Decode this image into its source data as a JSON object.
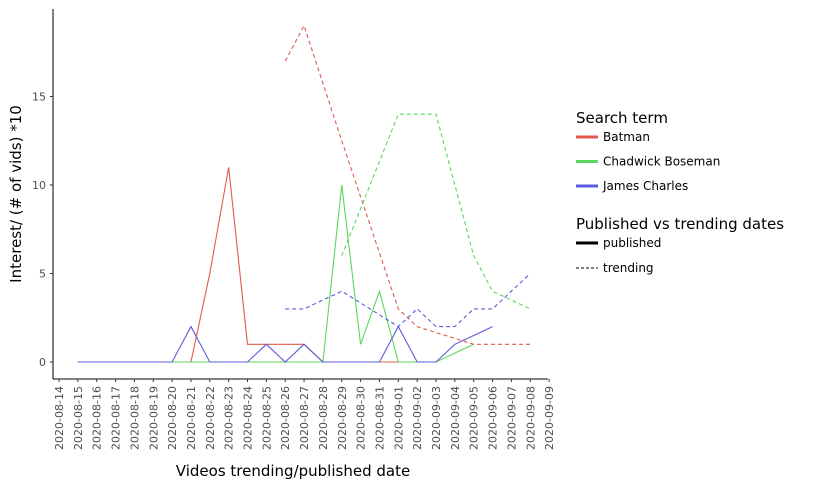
{
  "chart_data": {
    "type": "line",
    "xlabel": "Videos trending/published date",
    "ylabel": "Interest/ (# of vids) *10",
    "ylim": [
      -0.9,
      19.9
    ],
    "y_ticks": [
      0,
      5,
      10,
      15
    ],
    "y_tick_labels": [
      "0",
      "5",
      "10",
      "15"
    ],
    "grid": false,
    "legend_position": "right",
    "categories": [
      "2020-08-14",
      "2020-08-15",
      "2020-08-16",
      "2020-08-17",
      "2020-08-18",
      "2020-08-19",
      "2020-08-20",
      "2020-08-21",
      "2020-08-22",
      "2020-08-23",
      "2020-08-24",
      "2020-08-25",
      "2020-08-26",
      "2020-08-27",
      "2020-08-28",
      "2020-08-29",
      "2020-08-30",
      "2020-08-31",
      "2020-09-01",
      "2020-09-02",
      "2020-09-03",
      "2020-09-04",
      "2020-09-05",
      "2020-09-06",
      "2020-09-07",
      "2020-09-08",
      "2020-09-09"
    ],
    "legend_color": {
      "title": "Search term",
      "entries": [
        {
          "label": "Batman",
          "color": "#e05a4f"
        },
        {
          "label": "Chadwick Boseman",
          "color": "#5cd65c"
        },
        {
          "label": "James Charles",
          "color": "#5c5cdc"
        }
      ]
    },
    "legend_linetype": {
      "title": "Published vs trending dates",
      "entries": [
        {
          "label": "published",
          "dash": "solid"
        },
        {
          "label": "trending",
          "dash": "dashed"
        }
      ]
    },
    "series": [
      {
        "term": "Batman",
        "kind": "published",
        "color": "#e05a4f",
        "dash": "solid",
        "x": [
          "2020-08-15",
          "2020-08-16",
          "2020-08-17",
          "2020-08-18",
          "2020-08-19",
          "2020-08-20",
          "2020-08-21",
          "2020-08-22",
          "2020-08-23",
          "2020-08-24",
          "2020-08-25",
          "2020-08-26",
          "2020-08-27",
          "2020-08-28",
          "2020-08-29",
          "2020-08-30",
          "2020-08-31",
          "2020-09-01",
          "2020-09-02",
          "2020-09-03"
        ],
        "y": [
          0,
          0,
          0,
          0,
          0,
          0,
          0,
          5,
          11,
          1,
          1,
          1,
          1,
          0,
          0,
          0,
          0,
          0,
          0,
          0
        ]
      },
      {
        "term": "Chadwick Boseman",
        "kind": "published",
        "color": "#5cd65c",
        "dash": "solid",
        "x": [
          "2020-08-15",
          "2020-08-16",
          "2020-08-17",
          "2020-08-18",
          "2020-08-19",
          "2020-08-20",
          "2020-08-21",
          "2020-08-22",
          "2020-08-23",
          "2020-08-24",
          "2020-08-25",
          "2020-08-26",
          "2020-08-27",
          "2020-08-28",
          "2020-08-29",
          "2020-08-30",
          "2020-08-31",
          "2020-09-01",
          "2020-09-02",
          "2020-09-03",
          "2020-09-04",
          "2020-09-05"
        ],
        "y": [
          0,
          0,
          0,
          0,
          0,
          0,
          0,
          0,
          0,
          0,
          0,
          0,
          0,
          0,
          10,
          1,
          4,
          0,
          0,
          0,
          0.5,
          1
        ]
      },
      {
        "term": "James Charles",
        "kind": "published",
        "color": "#5c5cdc",
        "dash": "solid",
        "x": [
          "2020-08-15",
          "2020-08-16",
          "2020-08-17",
          "2020-08-18",
          "2020-08-19",
          "2020-08-20",
          "2020-08-21",
          "2020-08-22",
          "2020-08-23",
          "2020-08-24",
          "2020-08-25",
          "2020-08-26",
          "2020-08-27",
          "2020-08-28",
          "2020-08-29",
          "2020-08-30",
          "2020-08-31",
          "2020-09-01",
          "2020-09-02",
          "2020-09-03",
          "2020-09-04",
          "2020-09-05",
          "2020-09-06"
        ],
        "y": [
          0,
          0,
          0,
          0,
          0,
          0,
          2,
          0,
          0,
          0,
          1,
          0,
          1,
          0,
          0,
          0,
          0,
          2,
          0,
          0,
          1,
          1.5,
          2
        ]
      },
      {
        "term": "Batman",
        "kind": "trending",
        "color": "#e05a4f",
        "dash": "dashed",
        "x": [
          "2020-08-26",
          "2020-08-27",
          "2020-08-29",
          "2020-09-01",
          "2020-09-02",
          "2020-09-05",
          "2020-09-06",
          "2020-09-07",
          "2020-09-08"
        ],
        "y": [
          17,
          19,
          12.5,
          3,
          2,
          1,
          1,
          1,
          1
        ]
      },
      {
        "term": "Chadwick Boseman",
        "kind": "trending",
        "color": "#5cd65c",
        "dash": "dashed",
        "x": [
          "2020-08-29",
          "2020-09-01",
          "2020-09-02",
          "2020-09-03",
          "2020-09-05",
          "2020-09-06",
          "2020-09-08"
        ],
        "y": [
          6,
          14,
          14,
          14,
          6,
          4,
          3
        ]
      },
      {
        "term": "James Charles",
        "kind": "trending",
        "color": "#5c5cdc",
        "dash": "dashed",
        "x": [
          "2020-08-26",
          "2020-08-27",
          "2020-08-29",
          "2020-09-01",
          "2020-09-02",
          "2020-09-03",
          "2020-09-04",
          "2020-09-05",
          "2020-09-06",
          "2020-09-08"
        ],
        "y": [
          3,
          3,
          4,
          2,
          3,
          2,
          2,
          3,
          3,
          5
        ]
      }
    ]
  }
}
